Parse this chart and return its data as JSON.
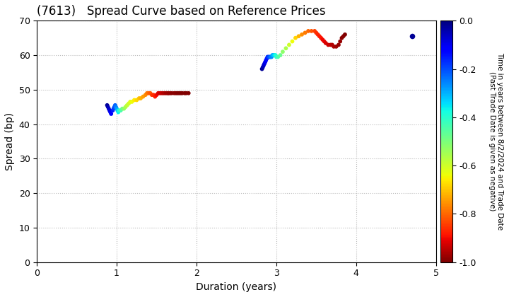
{
  "title": "(7613)   Spread Curve based on Reference Prices",
  "xlabel": "Duration (years)",
  "ylabel": "Spread (bp)",
  "colorbar_label": "Time in years between 8/2/2024 and Trade Date\n(Past Trade Date is given as negative)",
  "xlim": [
    0,
    5
  ],
  "ylim": [
    0,
    70
  ],
  "xticks": [
    0,
    1,
    2,
    3,
    4,
    5
  ],
  "yticks": [
    0,
    10,
    20,
    30,
    40,
    50,
    60,
    70
  ],
  "cmap": "jet_r",
  "clim": [
    -1.0,
    0.0
  ],
  "cticks": [
    0.0,
    -0.2,
    -0.4,
    -0.6,
    -0.8,
    -1.0
  ],
  "cluster1": {
    "duration": [
      0.88,
      0.89,
      0.9,
      0.91,
      0.92,
      0.93,
      0.95,
      0.96,
      0.97,
      0.98,
      0.99,
      1.0,
      1.01,
      1.02,
      1.03,
      1.05,
      1.07,
      1.09,
      1.11,
      1.13,
      1.15,
      1.17,
      1.19,
      1.22,
      1.25,
      1.28,
      1.3,
      1.33,
      1.36,
      1.38,
      1.4,
      1.42,
      1.44,
      1.46,
      1.48,
      1.5,
      1.52,
      1.54,
      1.56,
      1.58,
      1.6,
      1.62,
      1.64,
      1.65,
      1.67,
      1.69,
      1.72,
      1.74,
      1.76,
      1.78,
      1.8,
      1.82,
      1.85,
      1.87,
      1.9
    ],
    "spread": [
      45.5,
      45.0,
      44.5,
      44.0,
      43.5,
      43.0,
      44.0,
      44.5,
      45.0,
      45.5,
      45.0,
      44.5,
      44.0,
      43.5,
      44.0,
      44.0,
      44.5,
      44.5,
      45.0,
      45.5,
      46.0,
      46.5,
      46.5,
      47.0,
      47.0,
      47.5,
      47.5,
      48.0,
      48.5,
      49.0,
      49.0,
      49.0,
      48.5,
      48.5,
      48.0,
      48.5,
      49.0,
      49.0,
      49.0,
      49.0,
      49.0,
      49.0,
      49.0,
      49.0,
      49.0,
      49.0,
      49.0,
      49.0,
      49.0,
      49.0,
      49.0,
      49.0,
      49.0,
      49.0,
      49.0
    ],
    "time": [
      -0.02,
      -0.04,
      -0.06,
      -0.08,
      -0.1,
      -0.12,
      -0.15,
      -0.18,
      -0.2,
      -0.22,
      -0.25,
      -0.28,
      -0.32,
      -0.36,
      -0.4,
      -0.44,
      -0.48,
      -0.52,
      -0.56,
      -0.58,
      -0.6,
      -0.62,
      -0.64,
      -0.66,
      -0.68,
      -0.7,
      -0.72,
      -0.74,
      -0.76,
      -0.78,
      -0.8,
      -0.82,
      -0.84,
      -0.86,
      -0.88,
      -0.9,
      -0.92,
      -0.93,
      -0.94,
      -0.95,
      -0.96,
      -0.97,
      -0.97,
      -0.98,
      -0.98,
      -0.99,
      -0.99,
      -0.99,
      -1.0,
      -1.0,
      -1.0,
      -1.0,
      -1.0,
      -1.0,
      -1.0
    ]
  },
  "cluster2": {
    "duration": [
      2.82,
      2.83,
      2.84,
      2.85,
      2.86,
      2.87,
      2.88,
      2.89,
      2.9,
      2.91,
      2.92,
      2.93,
      2.94,
      2.95,
      2.96,
      2.97,
      2.98,
      2.99,
      3.0,
      3.02,
      3.05,
      3.08,
      3.12,
      3.16,
      3.2,
      3.24,
      3.28,
      3.32,
      3.36,
      3.4,
      3.44,
      3.48,
      3.5,
      3.52,
      3.54,
      3.56,
      3.58,
      3.6,
      3.62,
      3.65,
      3.68,
      3.7,
      3.72,
      3.75,
      3.78,
      3.8,
      3.82,
      3.84,
      3.86
    ],
    "spread": [
      56.0,
      56.5,
      57.0,
      57.5,
      58.0,
      58.5,
      59.0,
      59.5,
      59.5,
      59.5,
      59.5,
      59.5,
      59.5,
      60.0,
      60.0,
      60.0,
      60.0,
      60.0,
      59.5,
      59.5,
      60.0,
      61.0,
      62.0,
      63.0,
      64.0,
      65.0,
      65.5,
      66.0,
      66.5,
      67.0,
      67.0,
      67.0,
      66.5,
      66.0,
      65.5,
      65.0,
      64.5,
      64.0,
      63.5,
      63.0,
      63.0,
      63.0,
      62.5,
      62.5,
      63.0,
      64.0,
      65.0,
      65.5,
      66.0
    ],
    "time": [
      -0.02,
      -0.04,
      -0.06,
      -0.08,
      -0.1,
      -0.12,
      -0.14,
      -0.16,
      -0.18,
      -0.2,
      -0.22,
      -0.24,
      -0.26,
      -0.28,
      -0.3,
      -0.32,
      -0.35,
      -0.38,
      -0.4,
      -0.44,
      -0.48,
      -0.52,
      -0.56,
      -0.6,
      -0.64,
      -0.68,
      -0.72,
      -0.76,
      -0.78,
      -0.8,
      -0.82,
      -0.84,
      -0.86,
      -0.87,
      -0.88,
      -0.89,
      -0.9,
      -0.91,
      -0.92,
      -0.93,
      -0.94,
      -0.95,
      -0.96,
      -0.97,
      -0.98,
      -0.98,
      -0.99,
      -0.99,
      -1.0
    ]
  },
  "cluster3": {
    "duration": [
      4.7
    ],
    "spread": [
      65.5
    ],
    "time": [
      -0.02
    ]
  },
  "bg_color": "#ffffff",
  "grid_color": "#bbbbbb",
  "title_fontsize": 12,
  "axis_fontsize": 10,
  "tick_fontsize": 9,
  "marker_size": 10
}
